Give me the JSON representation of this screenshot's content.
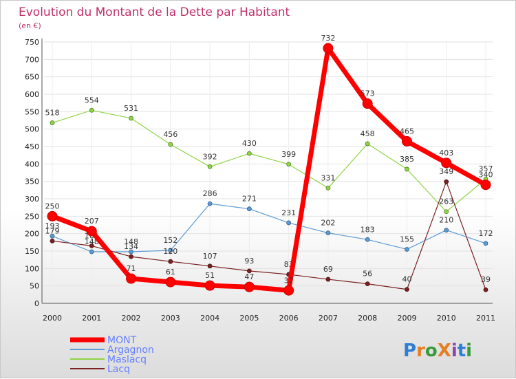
{
  "chart_data": {
    "type": "line",
    "title": "Evolution du Montant de la Dette par Habitant",
    "subtitle": "(en €)",
    "categories": [
      "2000",
      "2001",
      "2002",
      "2003",
      "2004",
      "2005",
      "2006",
      "2007",
      "2008",
      "2009",
      "2010",
      "2011"
    ],
    "ylim": [
      0,
      750
    ],
    "yticks": [
      0,
      50,
      100,
      150,
      200,
      250,
      300,
      350,
      400,
      450,
      500,
      550,
      600,
      650,
      700,
      750
    ],
    "grid": true,
    "legend_position": "bottom-left",
    "series": [
      {
        "name": "Argagnon",
        "color": "#5b9bd5",
        "values": [
          193,
          148,
          148,
          152,
          286,
          271,
          231,
          202,
          183,
          155,
          210,
          172
        ]
      },
      {
        "name": "Maslacq",
        "color": "#8fd444",
        "values": [
          518,
          554,
          531,
          456,
          392,
          430,
          399,
          331,
          458,
          385,
          263,
          357
        ]
      },
      {
        "name": "Lacq",
        "color": "#7a2020",
        "values": [
          179,
          165,
          134,
          120,
          107,
          93,
          83,
          69,
          56,
          40,
          349,
          39
        ]
      },
      {
        "name": "MONT",
        "color": "#ff0000",
        "emphasis": true,
        "values": [
          250,
          207,
          71,
          61,
          51,
          47,
          37,
          732,
          573,
          465,
          403,
          340
        ]
      }
    ],
    "legend_order": [
      "MONT",
      "Argagnon",
      "Maslacq",
      "Lacq"
    ],
    "legend_label_color": "#6680ff",
    "logo_text": "ProXiti"
  }
}
